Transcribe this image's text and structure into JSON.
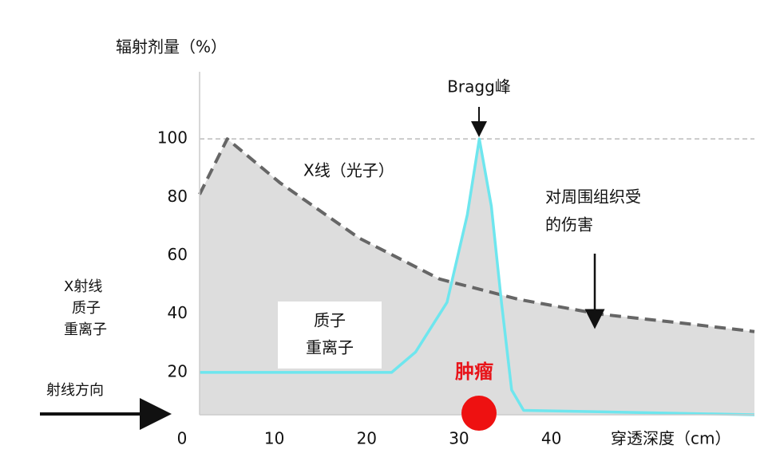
{
  "chart_data": {
    "type": "line",
    "title": "辐射剂量（%）",
    "x_label": "穿透深度（cm）",
    "xlim": [
      0,
      62
    ],
    "ylim": [
      5.5,
      123
    ],
    "xticks": [
      0,
      10,
      20,
      30,
      40
    ],
    "yticks": [
      20,
      40,
      60,
      80,
      100
    ],
    "reference_line": 100,
    "series": [
      {
        "name": "X线（光子）",
        "color": "#666666",
        "x": [
          1.9,
          4.9,
          10.6,
          19.2,
          27.9,
          36.5,
          45.2,
          53.9,
          62
        ],
        "values": [
          81,
          100,
          85,
          66,
          52,
          45,
          40,
          37,
          34
        ]
      },
      {
        "name": "质子 重离子",
        "color": "#6ee6ee",
        "x": [
          1.9,
          22.7,
          25.3,
          28.7,
          30.9,
          32.2,
          33.5,
          34.6,
          35.7,
          37,
          62
        ],
        "values": [
          20,
          20,
          27,
          44,
          74,
          100,
          77,
          44,
          14,
          7,
          5.5
        ]
      }
    ],
    "annotations": {
      "bragg": "Bragg峰",
      "damage_1": "对周围组织受",
      "damage_2": "的伤害",
      "tumor": "肿瘤",
      "left_1": "X射线",
      "left_2": "质子",
      "left_3": "重离子",
      "direction": "射线方向",
      "box_1": "质子",
      "box_2": "重离子"
    }
  }
}
